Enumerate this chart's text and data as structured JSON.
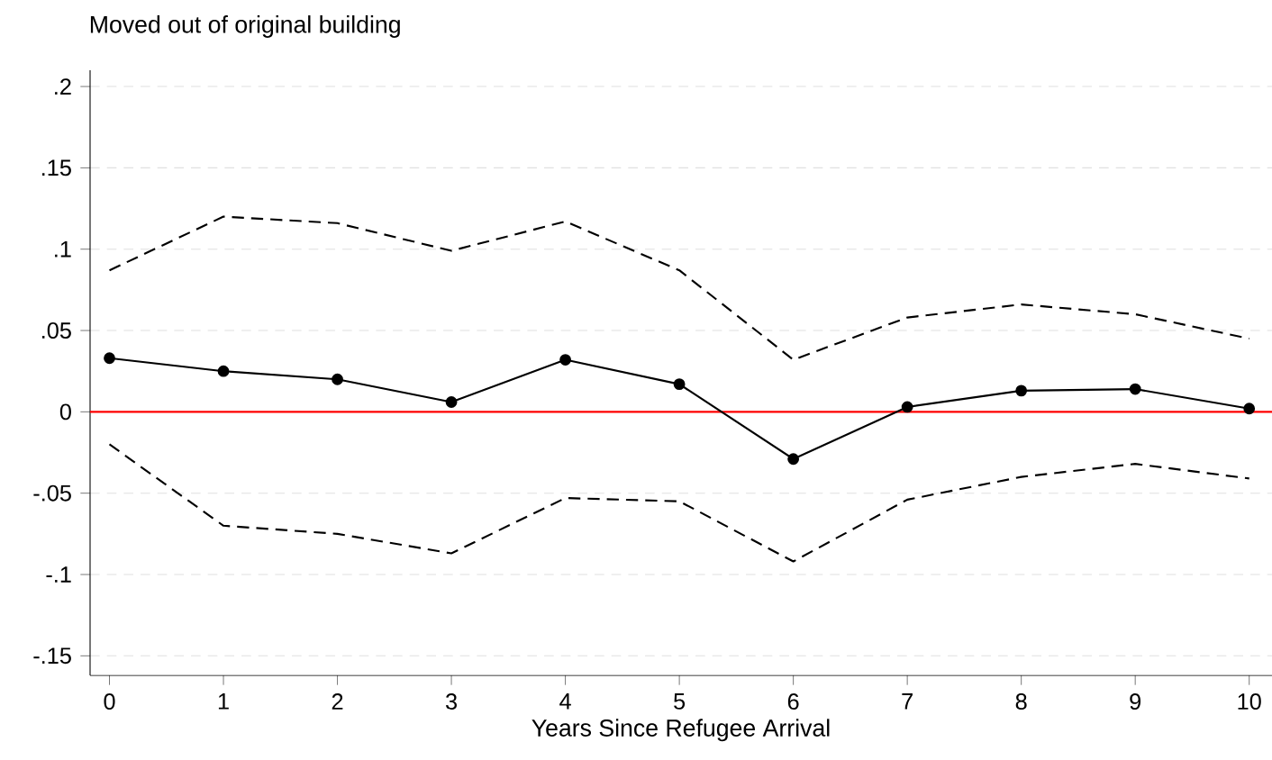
{
  "chart_data": {
    "type": "line",
    "title": "Moved out of original building",
    "xlabel": "Years Since Refugee Arrival",
    "x": [
      0,
      1,
      2,
      3,
      4,
      5,
      6,
      7,
      8,
      9,
      10
    ],
    "series": [
      {
        "color": "#000000",
        "marker": "circle",
        "line_style": "solid",
        "values": [
          0.033,
          0.025,
          0.02,
          0.006,
          0.032,
          0.017,
          -0.029,
          0.003,
          0.013,
          0.014,
          0.002
        ]
      },
      {
        "color": "#000000",
        "marker": "none",
        "line_style": "dashed",
        "values": [
          0.087,
          0.12,
          0.116,
          0.099,
          0.117,
          0.087,
          0.032,
          0.058,
          0.066,
          0.06,
          0.045
        ]
      },
      {
        "color": "#000000",
        "marker": "none",
        "line_style": "dashed",
        "values": [
          -0.02,
          -0.07,
          -0.075,
          -0.087,
          -0.053,
          -0.055,
          -0.092,
          -0.054,
          -0.04,
          -0.032,
          -0.041
        ]
      }
    ],
    "xlim": [
      -0.17,
      10.2
    ],
    "ylim": [
      -0.162,
      0.21
    ],
    "xticks": [
      0,
      1,
      2,
      3,
      4,
      5,
      6,
      7,
      8,
      9,
      10
    ],
    "yticks": [
      {
        "value": -0.15,
        "label": "-.15"
      },
      {
        "value": -0.1,
        "label": "-.1"
      },
      {
        "value": -0.05,
        "label": "-.05"
      },
      0,
      {
        "value": 0.05,
        "label": ".05"
      },
      {
        "value": 0.1,
        "label": ".1"
      },
      {
        "value": 0.15,
        "label": ".15"
      },
      {
        "value": 0.2,
        "label": ".2"
      }
    ],
    "grid": "y",
    "ref_lines": [
      {
        "axis": "y",
        "value": 0,
        "color": "#ff0000",
        "line_style": "solid"
      }
    ]
  }
}
